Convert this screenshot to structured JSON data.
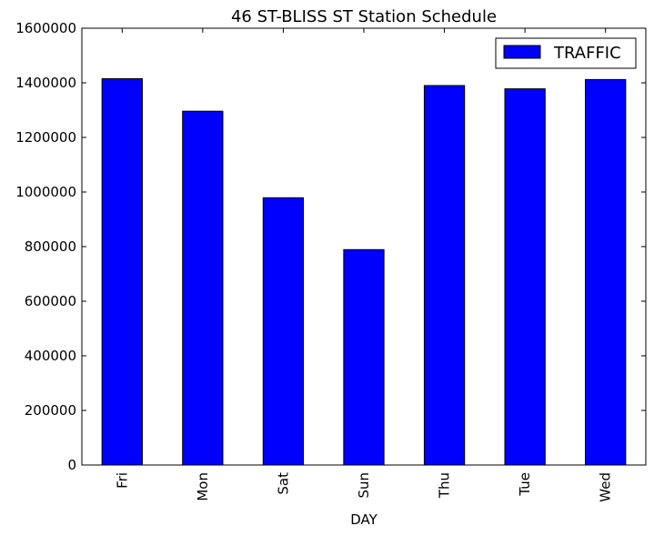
{
  "chart_data": {
    "type": "bar",
    "title": "46 ST-BLISS ST Station Schedule",
    "xlabel": "DAY",
    "ylabel": "",
    "categories": [
      "Fri",
      "Mon",
      "Sat",
      "Sun",
      "Thu",
      "Tue",
      "Wed"
    ],
    "series": [
      {
        "name": "TRAFFIC",
        "values": [
          1415000,
          1296000,
          979000,
          789000,
          1390000,
          1378000,
          1412000
        ],
        "color": "#0000ff"
      }
    ],
    "ylim": [
      0,
      1600000
    ],
    "yticks": [
      0,
      200000,
      400000,
      600000,
      800000,
      1000000,
      1200000,
      1400000,
      1600000
    ],
    "ytick_labels": [
      "0",
      "200000",
      "400000",
      "600000",
      "800000",
      "1000000",
      "1200000",
      "1400000",
      "1600000"
    ],
    "grid": false,
    "legend": {
      "placement": "top-right"
    }
  }
}
